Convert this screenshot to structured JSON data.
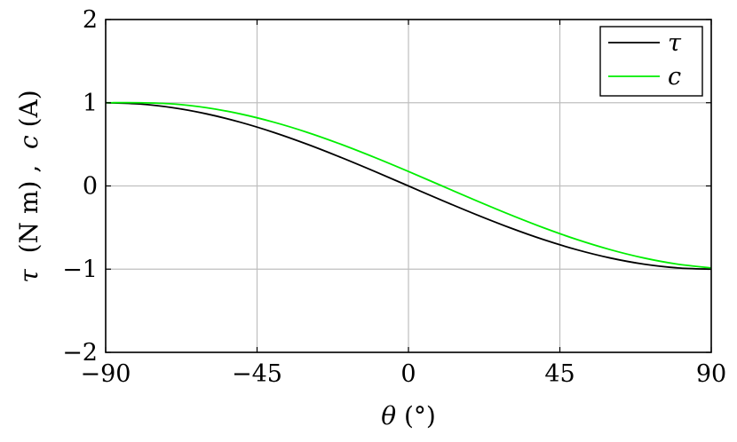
{
  "chart_data": {
    "type": "line",
    "xlabel_symbol": "θ",
    "xlabel_unit": "(°)",
    "ylabel_parts": [
      "τ",
      " (N m) , ",
      "c",
      " (A)"
    ],
    "xlim": [
      -90,
      90
    ],
    "ylim": [
      -2,
      2
    ],
    "xticks": [
      -90,
      -45,
      0,
      45,
      90
    ],
    "xtick_labels": [
      "−90",
      "−45",
      "0",
      "45",
      "90"
    ],
    "yticks": [
      -2,
      -1,
      0,
      1,
      2
    ],
    "ytick_labels": [
      "−2",
      "−1",
      "0",
      "1",
      "2"
    ],
    "grid": true,
    "legend_position": "top-right",
    "series": [
      {
        "name": "τ",
        "color": "#000000",
        "x": [
          -90,
          -80,
          -70,
          -60,
          -50,
          -40,
          -30,
          -20,
          -10,
          0,
          10,
          20,
          30,
          40,
          50,
          60,
          70,
          80,
          90
        ],
        "y": [
          1.0,
          0.985,
          0.94,
          0.866,
          0.766,
          0.643,
          0.5,
          0.342,
          0.174,
          0.0,
          -0.174,
          -0.342,
          -0.5,
          -0.643,
          -0.766,
          -0.866,
          -0.94,
          -0.985,
          -1.0
        ]
      },
      {
        "name": "c",
        "color": "#00ee00",
        "x": [
          -90,
          -80,
          -70,
          -60,
          -50,
          -40,
          -30,
          -20,
          -10,
          0,
          10,
          20,
          30,
          40,
          50,
          60,
          70,
          80,
          90
        ],
        "y": [
          1.0,
          1.0,
          0.985,
          0.94,
          0.866,
          0.766,
          0.643,
          0.5,
          0.342,
          0.174,
          0.0,
          -0.174,
          -0.342,
          -0.5,
          -0.643,
          -0.766,
          -0.866,
          -0.94,
          -0.985
        ]
      }
    ]
  }
}
